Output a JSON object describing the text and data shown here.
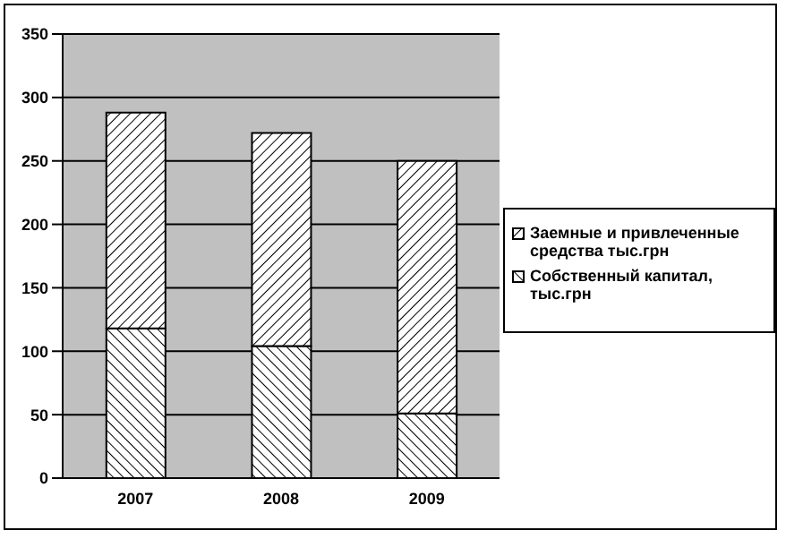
{
  "chart_data": {
    "type": "bar",
    "stacked": true,
    "categories": [
      "2007",
      "2008",
      "2009"
    ],
    "series": [
      {
        "name": "Собственный капитал, тыс.грн",
        "color": "#000000",
        "values": [
          118,
          104,
          51
        ]
      },
      {
        "name": "Заемные и привлеченные средства тыс.грн",
        "color": "#000000",
        "values": [
          170,
          168,
          199
        ]
      }
    ],
    "ylim": [
      0,
      350
    ],
    "yticks": [
      0,
      50,
      100,
      150,
      200,
      250,
      300,
      350
    ],
    "grid": "y",
    "legend": "right"
  }
}
